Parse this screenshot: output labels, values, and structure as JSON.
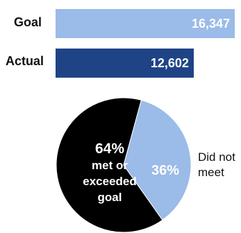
{
  "colors": {
    "goal": "#9bbbe8",
    "actual": "#1f4486",
    "met": "#000000",
    "not_met": "#9bbbe8"
  },
  "chart_data": [
    {
      "type": "bar",
      "orientation": "horizontal",
      "categories": [
        "Goal",
        "Actual"
      ],
      "values": [
        16347,
        12602
      ],
      "value_labels": [
        "16,347",
        "12,602"
      ]
    },
    {
      "type": "pie",
      "slices": [
        {
          "percent": 64,
          "label_value": "64%",
          "label_lines": [
            "met or",
            "exceeded",
            "goal"
          ]
        },
        {
          "percent": 36,
          "label_value": "36%",
          "label_lines": [
            "Did not",
            "meet"
          ]
        }
      ]
    }
  ]
}
